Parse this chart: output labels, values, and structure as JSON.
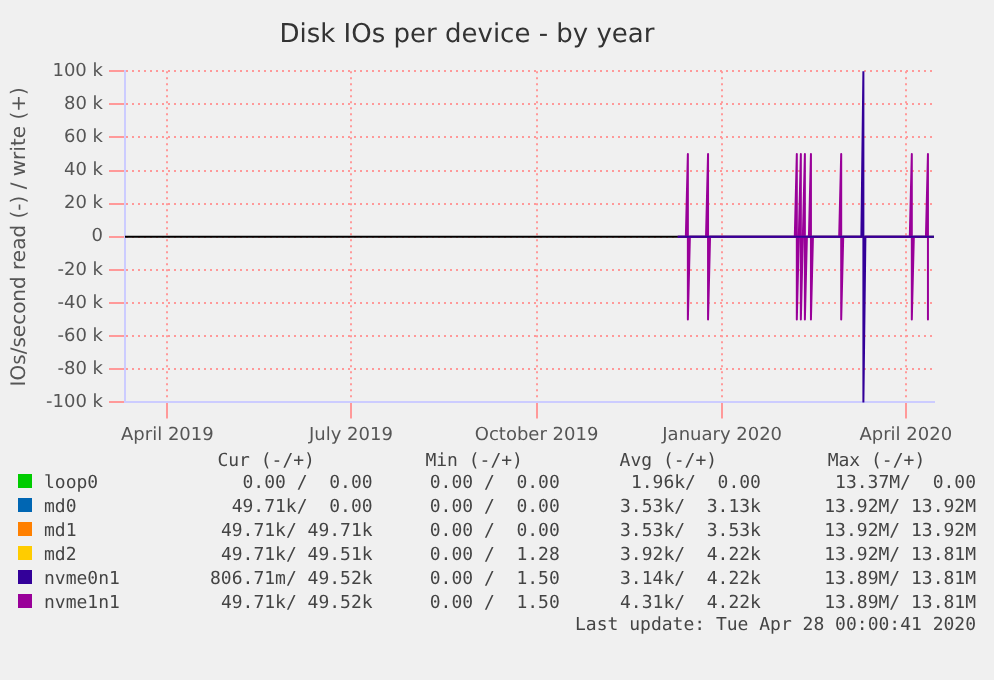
{
  "chart_data": {
    "type": "line",
    "title": "Disk IOs per device - by year",
    "ylabel": "IOs/second read (-) / write (+)",
    "xlim": [
      "2019-03-11",
      "2020-04-15"
    ],
    "xticks": [
      {
        "value": "2019-04-01",
        "label": "April 2019"
      },
      {
        "value": "2019-07-01",
        "label": "July 2019"
      },
      {
        "value": "2019-10-01",
        "label": "October 2019"
      },
      {
        "value": "2020-01-01",
        "label": "January 2020"
      },
      {
        "value": "2020-04-01",
        "label": "April 2020"
      }
    ],
    "ylim": [
      -100000,
      100000
    ],
    "yticks": [
      {
        "value": -100000,
        "label": "-100 k"
      },
      {
        "value": -80000,
        "label": "-80 k"
      },
      {
        "value": -60000,
        "label": "-60 k"
      },
      {
        "value": -40000,
        "label": "-40 k"
      },
      {
        "value": -20000,
        "label": "-20 k"
      },
      0,
      {
        "value": 20000,
        "label": "20 k"
      },
      {
        "value": 40000,
        "label": "40 k"
      },
      {
        "value": 60000,
        "label": "60 k"
      },
      {
        "value": 80000,
        "label": "80 k"
      },
      {
        "value": 100000,
        "label": "100 k"
      }
    ],
    "grid": true,
    "legend": "bottom",
    "marker": "none",
    "line_style": "solid",
    "series": [
      {
        "name": "loop0",
        "color": "#00cc00"
      },
      {
        "name": "md0",
        "color": "#0066b3"
      },
      {
        "name": "md1",
        "color": "#ff8000"
      },
      {
        "name": "md2",
        "color": "#ffcc00"
      },
      {
        "name": "nvme0n1",
        "color": "#330099",
        "x": [
          "2019-12-10",
          "2020-03-10",
          "2020-03-11",
          "2020-03-11",
          "2020-03-12",
          "2020-04-15"
        ],
        "values": [
          0,
          0,
          100000,
          -100000,
          0,
          0
        ]
      },
      {
        "name": "nvme1n1",
        "color": "#990099",
        "x": [
          "2019-12-10",
          "2019-12-14",
          "2019-12-15",
          "2019-12-15",
          "2019-12-16",
          "2019-12-24",
          "2019-12-25",
          "2019-12-25",
          "2019-12-26",
          "2020-02-06",
          "2020-02-07",
          "2020-02-07",
          "2020-02-08",
          "2020-02-09",
          "2020-02-09",
          "2020-02-10",
          "2020-02-11",
          "2020-02-11",
          "2020-02-12",
          "2020-02-13",
          "2020-02-14",
          "2020-02-14",
          "2020-02-15",
          "2020-02-28",
          "2020-02-29",
          "2020-02-29",
          "2020-03-01",
          "2020-04-03",
          "2020-04-04",
          "2020-04-04",
          "2020-04-05",
          "2020-04-11",
          "2020-04-12",
          "2020-04-12"
        ],
        "values": [
          0,
          0,
          50000,
          -50000,
          0,
          0,
          50000,
          -50000,
          0,
          0,
          50000,
          -50000,
          0,
          50000,
          -50000,
          0,
          50000,
          -50000,
          0,
          0,
          50000,
          -50000,
          0,
          0,
          50000,
          -50000,
          0,
          0,
          50000,
          -50000,
          0,
          0,
          50000,
          -50000
        ]
      }
    ],
    "annotations": [
      "Cur (-/+)",
      "Min (-/+)",
      "Avg (-/+)",
      "Max (-/+)",
      "0.00 /  0.00",
      "0.00 /  0.00",
      "1.96k/  0.00",
      "13.37M/  0.00",
      "49.71k/  0.00",
      "0.00 /  0.00",
      "3.53k/  3.13k",
      "13.92M/ 13.92M",
      "49.71k/ 49.71k",
      "0.00 /  0.00",
      "3.53k/  3.53k",
      "13.92M/ 13.92M",
      "49.71k/ 49.51k",
      "0.00 /  1.28",
      "3.92k/  4.22k",
      "13.92M/ 13.81M",
      "806.71m/ 49.52k",
      "0.00 /  1.50",
      "3.14k/  4.22k",
      "13.89M/ 13.81M",
      "49.71k/ 49.52k",
      "0.00 /  1.50",
      "4.31k/  4.22k",
      "13.89M/ 13.81M",
      "Last update: Tue Apr 28 00:00:41 2020"
    ]
  }
}
